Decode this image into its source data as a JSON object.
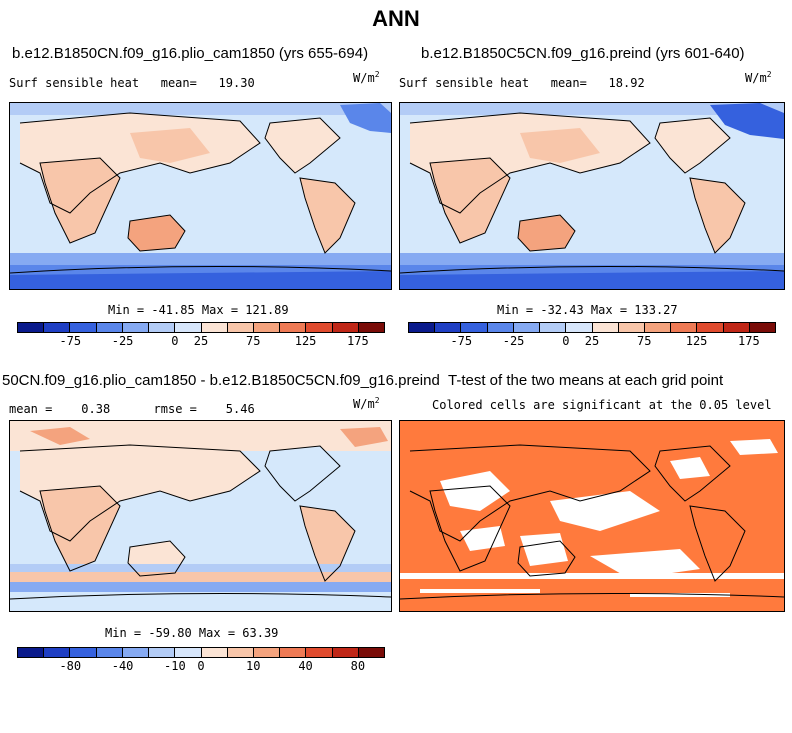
{
  "title": "ANN",
  "panels": [
    {
      "title": "b.e12.B1850CN.f09_g16.plio_cam1850 (yrs 655-694)",
      "variable": "Surf sensible heat",
      "mean_label": "mean=",
      "mean": "19.30",
      "units": "W/m",
      "units_exp": "2",
      "minmax": "Min = -41.85 Max = 121.89"
    },
    {
      "title": "b.e12.B1850C5CN.f09_g16.preind (yrs 601-640)",
      "variable": "Surf sensible heat",
      "mean_label": "mean=",
      "mean": "18.92",
      "units": "W/m",
      "units_exp": "2",
      "minmax": "Min = -32.43 Max = 133.27"
    },
    {
      "title": "50CN.f09_g16.plio_cam1850 - b.e12.B1850C5CN.f09_g16.preind",
      "mean_label": "mean =",
      "mean": "0.38",
      "rmse_label": "rmse =",
      "rmse": "5.46",
      "units": "W/m",
      "units_exp": "2",
      "minmax": "Min = -59.80 Max = 63.39"
    },
    {
      "title": "T-test of the two means at each grid point",
      "subtitle": "Colored cells are significant at the 0.05 level"
    }
  ],
  "colorbars": {
    "fields": {
      "ticks": [
        "-75",
        "-25",
        "0",
        "25",
        "75",
        "125",
        "175"
      ]
    },
    "difference": {
      "ticks": [
        "-80",
        "-40",
        "-10",
        "0",
        "10",
        "40",
        "80"
      ]
    },
    "colors": [
      "#0a1a8c",
      "#1f3fc4",
      "#3561de",
      "#5a86ea",
      "#86aaf2",
      "#b3ccf6",
      "#d7e6fb",
      "#fbe4d5",
      "#f8c6aa",
      "#f4a37e",
      "#ee7a55",
      "#e04b2e",
      "#c02717",
      "#7a0c08"
    ]
  },
  "map_colors": {
    "ocean": "#d5e8fb",
    "land_warm": "#f8c6aa",
    "land_light": "#fbe4d5",
    "cold": "#5a86ea",
    "deep_cold": "#3561de",
    "significant": "#ff7a3d"
  }
}
